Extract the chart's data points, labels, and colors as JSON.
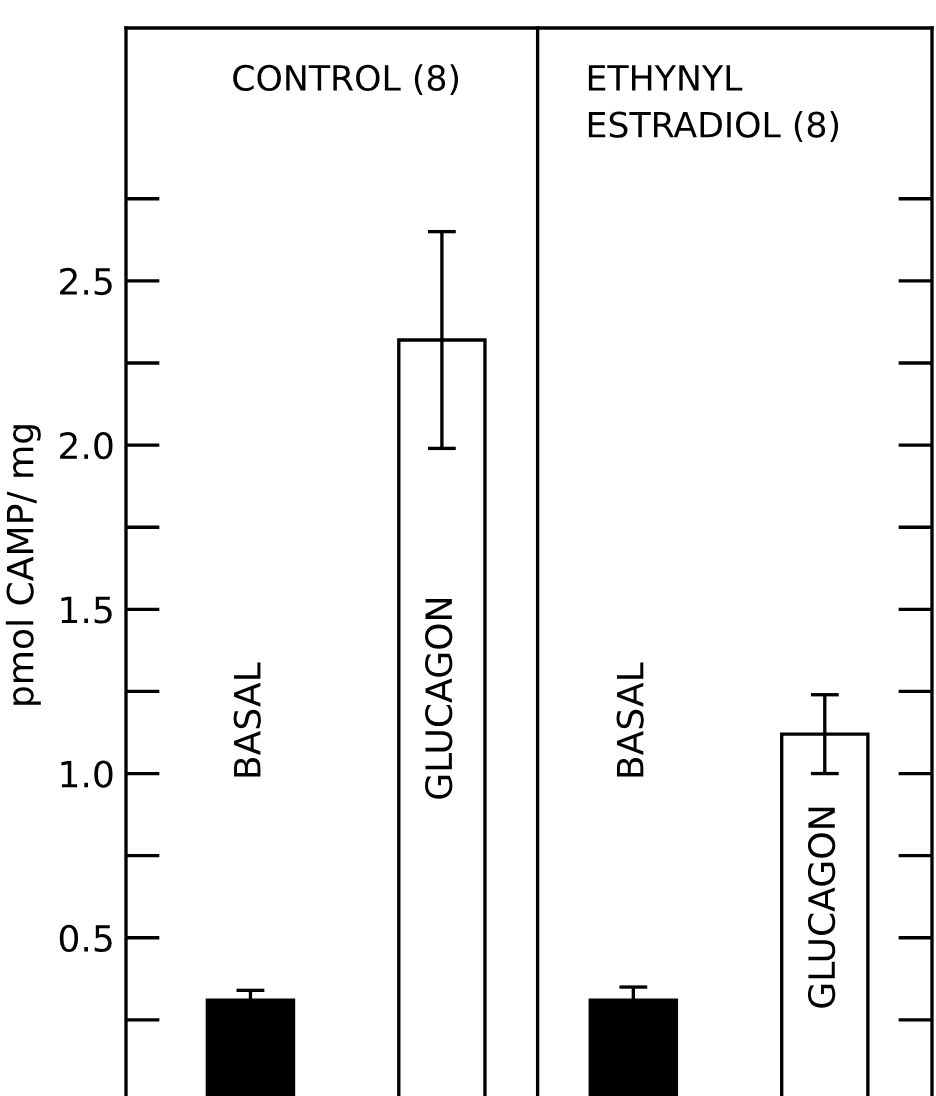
{
  "chart_data": {
    "type": "bar",
    "ylabel": "pmol CAMP/ mg",
    "annotations": [
      "CONTROL (8)",
      "ETHYNYL\nESTRADIOL (8)"
    ],
    "categories": [
      "BASAL",
      "GLUCAGON",
      "BASAL",
      "GLUCAGON"
    ],
    "values": [
      0.31,
      2.32,
      0.31,
      1.12
    ],
    "colors": [
      "#000000",
      "#ffffff",
      "#000000",
      "#ffffff"
    ],
    "errors": [
      0.03,
      0.33,
      0.04,
      0.12
    ],
    "ylim": [
      0,
      3.27
    ],
    "yticks": [
      0.5,
      {
        "value": 1,
        "label": "1.0"
      },
      1.5,
      {
        "value": 2,
        "label": "2.0"
      },
      2.5
    ]
  }
}
